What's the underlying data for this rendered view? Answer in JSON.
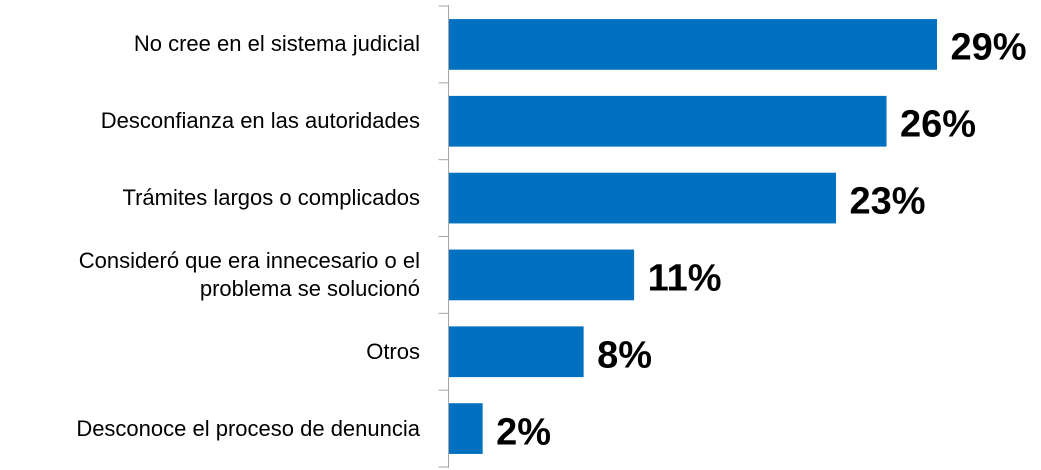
{
  "chart_data": {
    "type": "bar",
    "orientation": "horizontal",
    "categories": [
      "No cree en el sistema judicial",
      "Desconfianza en las autoridades",
      "Trámites largos o complicados",
      "Consideró que era innecesario o el problema se solucionó",
      "Otros",
      "Desconoce el proceso de denuncia"
    ],
    "values": [
      29,
      26,
      23,
      11,
      8,
      2
    ],
    "value_labels": [
      "29%",
      "26%",
      "23%",
      "11%",
      "8%",
      "2%"
    ],
    "color": "#0070c0"
  }
}
